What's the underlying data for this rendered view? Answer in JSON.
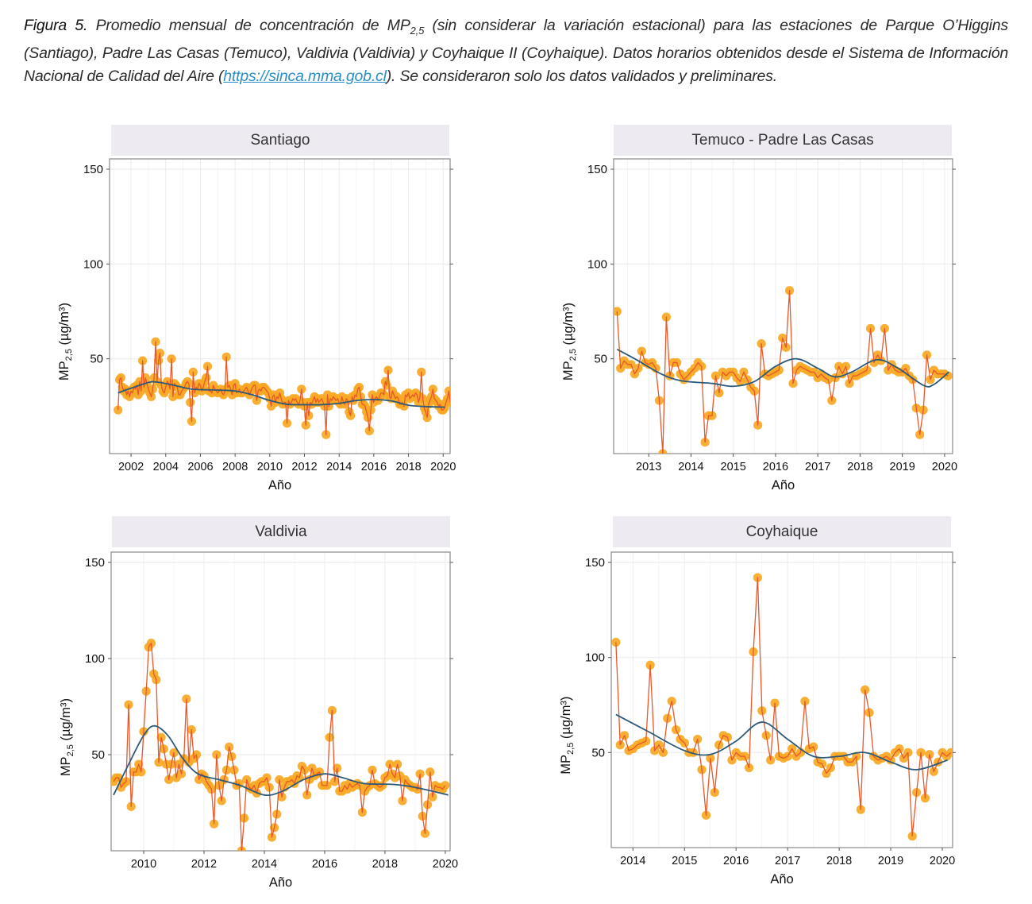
{
  "caption": {
    "figure_label": "Figura 5.",
    "text_before_sub": " Promedio mensual de concentración de MP",
    "subscript": "2,5",
    "text_after_sub": " (sin considerar la variación estacional) para las estaciones de Parque O’Higgins (Santiago), Padre Las Casas (Temuco), Valdivia (Valdivia) y Coyhaique II (Coyhaique). Datos horarios obtenidos desde el Sistema de Información Nacional de Calidad del Aire (",
    "link_text": "https://sinca.mma.gob.cl",
    "text_end": "). Se consideraron solo los datos validados y preliminares."
  },
  "colors": {
    "strip_bg": "#edeaf2",
    "point_fill": "#f7a823",
    "line": "#e8582a",
    "trend": "#2e5a7a",
    "grid": "#ececec",
    "axis": "#777777"
  },
  "chart_data": [
    {
      "type": "line",
      "title": "Santiago",
      "xlabel": "Año",
      "ylabel": "MP2,5 (µg/m³)",
      "ylabel_main": "MP",
      "ylabel_sub": "2,5",
      "ylabel_unit": " (µg/m³)",
      "xlim": [
        2000.76,
        2020.4
      ],
      "ylim": [
        0,
        155
      ],
      "xticks": [
        2002,
        2004,
        2006,
        2008,
        2010,
        2012,
        2014,
        2016,
        2018,
        2020
      ],
      "yticks": [
        50,
        100,
        150
      ],
      "grid": true,
      "series": [
        {
          "name": "Promedio mensual",
          "start": 2001.25,
          "step": 0.0833,
          "values": [
            23,
            39,
            40,
            35,
            33,
            34,
            31,
            33,
            30,
            33,
            32,
            35,
            34,
            36,
            31,
            38,
            33,
            49,
            35,
            40,
            37,
            34,
            32,
            30,
            34,
            40,
            59,
            38,
            49,
            53,
            36,
            33,
            32,
            35,
            38,
            37,
            34,
            50,
            30,
            37,
            36,
            35,
            31,
            31,
            33,
            34,
            35,
            37,
            38,
            37,
            27,
            17,
            43,
            32,
            35,
            34,
            37,
            36,
            33,
            35,
            38,
            40,
            46,
            33,
            33,
            32,
            36,
            34,
            33,
            32,
            33,
            34,
            32,
            31,
            33,
            51,
            35,
            36,
            34,
            31,
            36,
            37,
            32,
            33,
            34,
            32,
            32,
            33,
            34,
            35,
            33,
            31,
            33,
            35,
            36,
            36,
            28,
            33,
            34,
            33,
            35,
            35,
            34,
            33,
            32,
            29,
            25,
            30,
            31,
            27,
            30,
            29,
            32,
            29,
            26,
            27,
            27,
            16,
            28,
            26,
            27,
            29,
            28,
            29,
            27,
            26,
            28,
            34,
            27,
            25,
            15,
            27,
            20,
            27,
            26,
            28,
            30,
            27,
            29,
            27,
            28,
            29,
            27,
            25,
            10,
            31,
            25,
            29,
            28,
            30,
            29,
            28,
            29,
            27,
            26,
            30,
            27,
            26,
            29,
            28,
            22,
            20,
            30,
            28,
            31,
            30,
            34,
            35,
            30,
            26,
            26,
            25,
            22,
            19,
            12,
            23,
            31,
            27,
            29,
            30,
            28,
            30,
            32,
            32,
            31,
            38,
            36,
            44,
            30,
            29,
            33,
            31,
            29,
            30,
            29,
            26,
            26,
            27,
            25,
            31,
            30,
            32,
            29,
            30,
            31,
            30,
            32,
            31,
            27,
            30,
            43,
            29,
            24,
            22,
            19,
            26,
            28,
            30,
            34,
            29,
            28,
            27,
            25,
            26,
            23,
            23,
            24,
            27,
            29,
            33,
            27,
            29,
            28,
            27,
            26,
            24,
            25,
            27,
            30,
            29,
            28,
            27,
            29,
            30,
            28,
            24,
            20,
            17,
            37,
            26,
            24,
            27,
            28,
            25,
            24,
            25
          ]
        },
        {
          "name": "Tendencia",
          "x": [
            2001.25,
            2002.0,
            2003.0,
            2003.5,
            2004.5,
            2005.5,
            2007.0,
            2008.0,
            2009.0,
            2010.0,
            2011.0,
            2012.0,
            2013.0,
            2014.0,
            2015.0,
            2016.0,
            2017.0,
            2018.0,
            2019.0,
            2020.1
          ],
          "values": [
            32,
            34.5,
            37.5,
            37.7,
            36,
            34,
            33.5,
            33,
            31,
            28,
            26,
            25.8,
            25.8,
            26.5,
            28,
            28.5,
            27.8,
            25.5,
            24.8,
            24.5
          ]
        }
      ]
    },
    {
      "type": "line",
      "title": "Temuco - Padre Las Casas",
      "xlabel": "Año",
      "ylabel": "MP2,5 (µg/m³)",
      "ylabel_main": "MP",
      "ylabel_sub": "2,5",
      "ylabel_unit": " (µg/m³)",
      "xlim": [
        2012.17,
        2020.19
      ],
      "ylim": [
        0,
        155
      ],
      "xticks": [
        2013,
        2014,
        2015,
        2016,
        2017,
        2018,
        2019,
        2020
      ],
      "yticks": [
        50,
        100,
        150
      ],
      "grid": true,
      "series": [
        {
          "name": "Promedio mensual",
          "start": 2012.25,
          "step": 0.0833,
          "values": [
            75,
            45,
            49,
            47,
            47,
            42,
            45,
            54,
            48,
            47,
            48,
            45,
            28,
            0,
            72,
            41,
            48,
            48,
            42,
            39,
            41,
            43,
            45,
            48,
            46,
            6,
            20,
            20,
            41,
            32,
            43,
            41,
            43,
            43,
            40,
            38,
            43,
            39,
            35,
            33,
            15,
            58,
            42,
            41,
            42,
            43,
            44,
            61,
            56,
            86,
            37,
            44,
            46,
            45,
            44,
            43,
            43,
            40,
            42,
            40,
            39,
            28,
            40,
            46,
            42,
            46,
            37,
            41,
            41,
            42,
            43,
            44,
            66,
            48,
            52,
            49,
            66,
            44,
            47,
            44,
            43,
            43,
            45,
            41,
            39,
            24,
            10,
            23,
            52,
            39,
            44,
            42,
            42,
            42,
            41
          ],
          "note": "one point clipped below axis near 2013.35"
        },
        {
          "name": "Tendencia",
          "x": [
            2012.25,
            2012.75,
            2013.25,
            2013.75,
            2014.5,
            2015.0,
            2015.5,
            2016.0,
            2016.5,
            2017.0,
            2017.4,
            2017.8,
            2018.4,
            2018.9,
            2019.5,
            2019.75,
            2020.1
          ],
          "values": [
            55,
            49,
            42.5,
            38.5,
            37,
            35.5,
            38,
            46,
            50,
            45,
            40.5,
            43,
            49.5,
            45,
            36,
            36.5,
            43
          ]
        }
      ]
    },
    {
      "type": "line",
      "title": "Valdivia",
      "xlabel": "Año",
      "ylabel": "MP2,5 (µg/m³)",
      "ylabel_main": "MP",
      "ylabel_sub": "2,5",
      "ylabel_unit": " (µg/m³)",
      "xlim": [
        2008.92,
        2020.16
      ],
      "ylim": [
        0,
        155
      ],
      "xticks": [
        2010,
        2012,
        2014,
        2016,
        2018,
        2020
      ],
      "yticks": [
        50,
        100,
        150
      ],
      "grid": true,
      "series": [
        {
          "name": "Promedio mensual",
          "start": 2009.0,
          "step": 0.0833,
          "values": [
            36,
            38,
            38,
            33,
            35,
            36,
            76,
            23,
            41,
            41,
            45,
            41,
            62,
            83,
            106,
            108,
            92,
            89,
            46,
            59,
            53,
            45,
            37,
            45,
            51,
            38,
            45,
            40,
            48,
            79,
            46,
            63,
            48,
            50,
            37,
            40,
            39,
            36,
            34,
            32,
            14,
            50,
            34,
            26,
            37,
            42,
            54,
            49,
            42,
            34,
            35,
            0,
            17,
            37,
            33,
            32,
            34,
            30,
            35,
            36,
            36,
            38,
            33,
            7,
            12,
            19,
            37,
            28,
            33,
            36,
            36,
            37,
            35,
            39,
            38,
            44,
            42,
            29,
            37,
            43,
            39,
            40,
            41,
            34,
            34,
            34,
            59,
            73,
            36,
            43,
            31,
            31,
            34,
            32,
            35,
            33,
            34,
            35,
            34,
            20,
            31,
            33,
            34,
            42,
            35,
            34,
            33,
            34,
            38,
            39,
            45,
            40,
            38,
            45,
            39,
            26,
            37,
            35,
            34,
            33,
            33,
            32,
            40,
            18,
            9,
            24,
            41,
            28,
            34,
            33,
            33,
            32,
            34
          ]
        },
        {
          "name": "Tendencia",
          "x": [
            2009.0,
            2009.5,
            2010.0,
            2010.35,
            2010.8,
            2011.3,
            2011.8,
            2012.5,
            2013.2,
            2014.0,
            2014.6,
            2015.3,
            2016.0,
            2016.6,
            2017.3,
            2018.3,
            2019.0,
            2020.1
          ],
          "values": [
            29,
            45,
            60,
            65,
            60,
            48,
            40,
            37,
            34,
            29,
            31,
            37,
            40,
            38,
            35,
            34.5,
            33,
            29
          ]
        }
      ]
    },
    {
      "type": "line",
      "title": "Coyhaique",
      "xlabel": "Año",
      "ylabel": "MP2,5 (µg/m³)",
      "ylabel_main": "MP",
      "ylabel_sub": "2,5",
      "ylabel_unit": " (µg/m³)",
      "xlim": [
        2013.58,
        2020.2
      ],
      "ylim": [
        0,
        155
      ],
      "xticks": [
        2014,
        2015,
        2016,
        2017,
        2018,
        2019,
        2020
      ],
      "yticks": [
        50,
        100,
        150
      ],
      "grid": true,
      "series": [
        {
          "name": "Promedio mensual",
          "start": 2013.67,
          "step": 0.0833,
          "values": [
            108,
            54,
            59,
            51,
            52,
            54,
            55,
            56,
            96,
            51,
            54,
            50,
            68,
            77,
            62,
            57,
            55,
            50,
            50,
            57,
            41,
            17,
            47,
            29,
            54,
            59,
            58,
            46,
            50,
            48,
            48,
            42,
            103,
            142,
            72,
            59,
            46,
            76,
            48,
            47,
            48,
            52,
            48,
            50,
            77,
            52,
            53,
            45,
            44,
            39,
            42,
            48,
            48,
            48,
            45,
            45,
            48,
            20,
            83,
            71,
            48,
            46,
            47,
            48,
            46,
            50,
            52,
            47,
            50,
            6,
            29,
            50,
            26,
            49,
            40,
            45,
            50,
            48,
            50
          ]
        },
        {
          "name": "Tendencia",
          "x": [
            2013.67,
            2014.3,
            2015.0,
            2015.5,
            2016.0,
            2016.5,
            2017.0,
            2017.5,
            2018.0,
            2018.5,
            2019.0,
            2019.5,
            2020.1
          ],
          "values": [
            70,
            61,
            51,
            49,
            56,
            66,
            57,
            48,
            48,
            50,
            45,
            41,
            46
          ]
        }
      ]
    }
  ]
}
